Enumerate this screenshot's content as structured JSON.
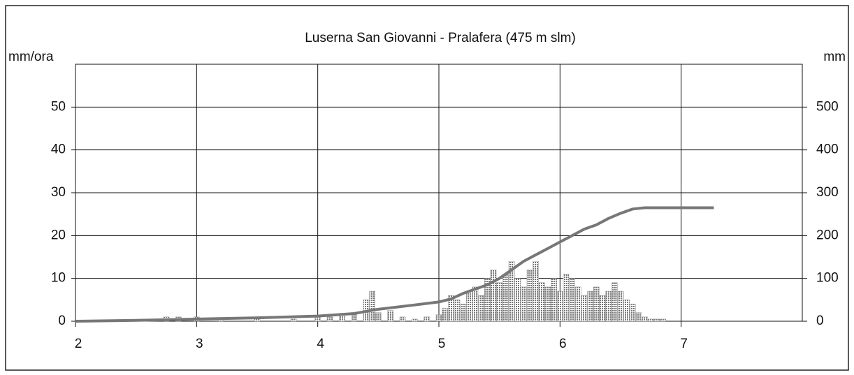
{
  "chart_data": {
    "type": "bar-line",
    "title": "Luserna San Giovanni - Pralafera (475 m slm)",
    "y_label": "mm/ora",
    "y2_label": "mm",
    "xlim": [
      2,
      8
    ],
    "xticks": [
      2,
      3,
      4,
      5,
      6,
      7
    ],
    "ylim": [
      0,
      60
    ],
    "yticks": [
      0,
      10,
      20,
      30,
      40,
      50
    ],
    "y2lim": [
      0,
      600
    ],
    "y2ticks": [
      0,
      100,
      200,
      300,
      400,
      500
    ],
    "grid": true,
    "series": [
      {
        "type": "bar",
        "color": "#8a8a8a",
        "x": [
          2.75,
          2.85,
          3.0,
          3.2,
          3.5,
          3.8,
          4.0,
          4.1,
          4.2,
          4.3,
          4.4,
          4.45,
          4.5,
          4.6,
          4.7,
          4.8,
          4.9,
          5.0,
          5.05,
          5.1,
          5.15,
          5.2,
          5.25,
          5.3,
          5.35,
          5.4,
          5.45,
          5.5,
          5.55,
          5.6,
          5.65,
          5.7,
          5.75,
          5.8,
          5.85,
          5.9,
          5.95,
          6.0,
          6.05,
          6.1,
          6.15,
          6.2,
          6.25,
          6.3,
          6.35,
          6.4,
          6.45,
          6.5,
          6.55,
          6.6,
          6.65,
          6.7,
          6.75,
          6.8,
          6.85
        ],
        "values": [
          1,
          1,
          1,
          0.5,
          0.5,
          0.5,
          1,
          1,
          1.5,
          2,
          5,
          7,
          2,
          2.5,
          1,
          0.5,
          1,
          1.5,
          3,
          6,
          5,
          4,
          7,
          8,
          6,
          10,
          12,
          9,
          11,
          14,
          10,
          8,
          12,
          14,
          9,
          8,
          10,
          7,
          11,
          10,
          8,
          6,
          7,
          8,
          6,
          7,
          9,
          7,
          5,
          4,
          2,
          1,
          0.5,
          0.5,
          0.5
        ]
      },
      {
        "type": "line",
        "axis": "y2",
        "color": "#777777",
        "x": [
          2,
          2.5,
          3,
          3.5,
          4,
          4.3,
          4.5,
          4.8,
          5,
          5.1,
          5.2,
          5.3,
          5.4,
          5.5,
          5.6,
          5.7,
          5.8,
          5.9,
          6,
          6.1,
          6.2,
          6.3,
          6.4,
          6.5,
          6.6,
          6.7,
          7,
          7.27
        ],
        "values": [
          0,
          2,
          5,
          8,
          12,
          18,
          28,
          38,
          45,
          52,
          65,
          75,
          85,
          100,
          120,
          140,
          155,
          170,
          185,
          200,
          215,
          225,
          240,
          252,
          262,
          265,
          265,
          265
        ]
      }
    ]
  }
}
